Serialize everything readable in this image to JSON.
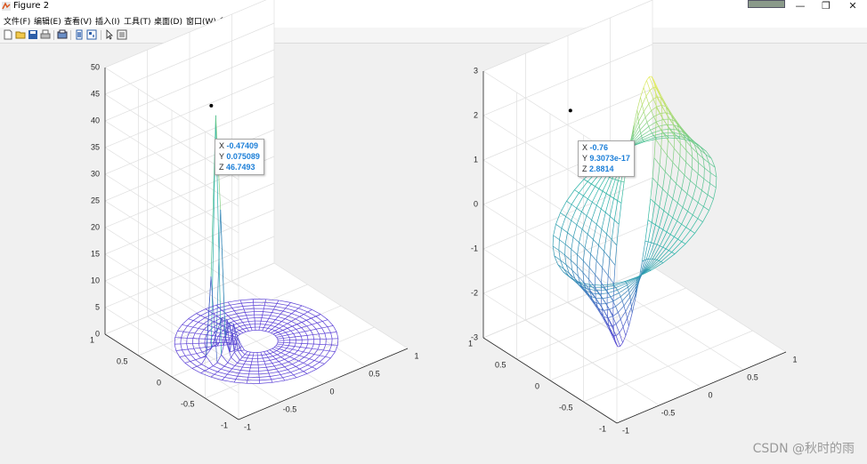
{
  "window": {
    "title": "Figure 2",
    "controls": {
      "minimize": "—",
      "maximize": "❐",
      "close": "✕"
    }
  },
  "menu": [
    "文件(F)",
    "编辑(E)",
    "查看(V)",
    "插入(I)",
    "工具(T)",
    "桌面(D)",
    "窗口(W)",
    "帮助(H)"
  ],
  "toolbar": {
    "icons": [
      "new-figure-icon",
      "open-file-icon",
      "save-icon",
      "print-icon",
      "print-preview-icon",
      "link-plot-icon",
      "insert-colorbar-icon",
      "select-pointer-icon",
      "property-inspector-icon"
    ]
  },
  "colors": {
    "low": "#5a3fd6",
    "mid": "#23b5a5",
    "high": "#f5f05a",
    "datatip_value": "#1c7fd8"
  },
  "chart_data": [
    {
      "type": "surface",
      "description_function": "polar-grid surface, ring 0.2≤r≤0.76, spike near theta=pi",
      "xlim": [
        -1,
        1
      ],
      "ylim": [
        -1,
        1
      ],
      "zlim": [
        0,
        50
      ],
      "xticks": [
        "-1",
        "-0.5",
        "0",
        "0.5",
        "1"
      ],
      "yticks": [
        "-1",
        "-0.5",
        "0",
        "0.5",
        "1"
      ],
      "zticks": [
        "0",
        "5",
        "10",
        "15",
        "20",
        "25",
        "30",
        "35",
        "40",
        "45",
        "50"
      ],
      "grid": true,
      "datatip": {
        "x": "-0.47409",
        "y": "0.075089",
        "z": "46.7493"
      }
    },
    {
      "type": "surface",
      "description_function": "polar-grid surface, ring 0.2≤r≤0.76, saddle-like values",
      "xlim": [
        -1,
        1
      ],
      "ylim": [
        -1,
        1
      ],
      "zlim": [
        -3,
        3
      ],
      "xticks": [
        "-1",
        "-0.5",
        "0",
        "0.5",
        "1"
      ],
      "yticks": [
        "-1",
        "-0.5",
        "0",
        "0.5",
        "1"
      ],
      "zticks": [
        "-3",
        "-2",
        "-1",
        "0",
        "1",
        "2",
        "3"
      ],
      "grid": true,
      "datatip": {
        "x": "-0.76",
        "y": "9.3073e-17",
        "z": "2.8814"
      }
    }
  ],
  "watermark": "CSDN @秋时的雨"
}
